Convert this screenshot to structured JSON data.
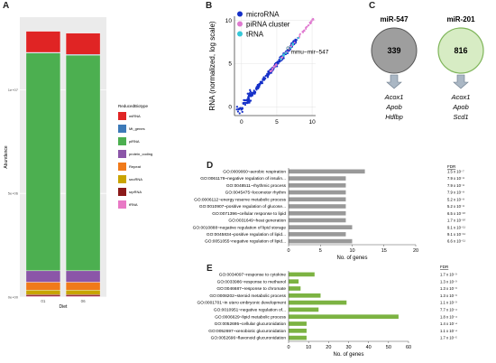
{
  "panels": [
    "A",
    "B",
    "C",
    "D",
    "E"
  ],
  "panelA": {
    "chart_data": {
      "type": "bar",
      "stacked": true,
      "xlabel": "Diet",
      "ylabel": "Abundance",
      "categories": [
        "01",
        "06"
      ],
      "y_ticks": [
        "0e+00",
        "5e+06",
        "1e+07"
      ],
      "ylim": [
        0,
        13500000
      ],
      "series": [
        {
          "name": "tRNA",
          "color": "#e879c5",
          "values": [
            40000,
            40000
          ]
        },
        {
          "name": "srpRNA",
          "color": "#8b1a1a",
          "values": [
            80000,
            80000
          ]
        },
        {
          "name": "snoRNA",
          "color": "#c9a400",
          "values": [
            220000,
            220000
          ]
        },
        {
          "name": "Repeat",
          "color": "#f07a1a",
          "values": [
            380000,
            380000
          ]
        },
        {
          "name": "protein_coding",
          "color": "#8b56a8",
          "values": [
            550000,
            550000
          ]
        },
        {
          "name": "piRNA",
          "color": "#4caf50",
          "values": [
            10500000,
            10400000
          ]
        },
        {
          "name": "Mt_genes",
          "color": "#3d7ab8",
          "values": [
            30000,
            30000
          ]
        },
        {
          "name": "miRNA",
          "color": "#e02424",
          "values": [
            1020000,
            1030000
          ]
        }
      ],
      "legend_title": "ReducedBiotype",
      "legend": [
        "miRNA",
        "Mt_genes",
        "piRNA",
        "protein_coding",
        "Repeat",
        "snoRNA",
        "srpRNA",
        "tRNA"
      ],
      "legend_colors": [
        "#e02424",
        "#3d7ab8",
        "#4caf50",
        "#8b56a8",
        "#f07a1a",
        "#c9a400",
        "#8b1a1a",
        "#e879c5"
      ],
      "legend_placement": "right"
    }
  },
  "panelB": {
    "chart_data": {
      "type": "scatter",
      "ylabel": "RNA (normalized, log scale)",
      "xlabel": "",
      "xlim": [
        -1,
        10.5
      ],
      "ylim": [
        -1,
        10.5
      ],
      "x_ticks": [
        0,
        5,
        10
      ],
      "y_ticks": [
        0,
        5,
        10
      ],
      "legend": [
        "microRNA",
        "piRNA cluster",
        "tRNA"
      ],
      "legend_colors": [
        "#1530c8",
        "#e07ad0",
        "#36c8d8"
      ],
      "legend_placement": "top-left",
      "annotation": {
        "text": "mmu−mir−547",
        "x": 6.6,
        "y": 6.8
      }
    }
  },
  "panelC": {
    "circles": [
      {
        "title": "miR-547",
        "count": "339",
        "genes": [
          "Acox1",
          "Apob",
          "Hdlbp"
        ],
        "fill": "#9e9e9e",
        "stroke": "#555555"
      },
      {
        "title": "miR-201",
        "count": "816",
        "genes": [
          "Acox1",
          "Apob",
          "Scd1"
        ],
        "fill": "#d7ecc4",
        "stroke": "#7fb55a"
      }
    ]
  },
  "panelD": {
    "chart_data": {
      "type": "bar",
      "orientation": "horizontal",
      "color": "#999999",
      "xlabel": "No. of genes",
      "x_ticks": [
        0,
        5,
        10,
        15,
        20
      ],
      "xlim": [
        0,
        20
      ],
      "fdr_header": "FDR",
      "categories": [
        "GO:0009060~aerobic respiration",
        "GO:0061179~negative regulation of insulin...",
        "GO:0048511~rhythmic process",
        "GO:0045475~locomotor rhythm",
        "GO:0006112~energy reserve metabolic process",
        "GO:0010907~positive regulation of glucose...",
        "GO:0071396~cellular response to lipid",
        "GO:0031649~heat generation",
        "GO:0010888~negative regulation of lipid storage",
        "GO:0045834~positive regulation of lipid...",
        "GO:0051055~negative regulation of lipid..."
      ],
      "values": [
        12,
        9,
        9,
        9,
        9,
        9,
        9,
        9,
        10,
        9,
        10
      ],
      "fdr": [
        "1.5 x 10⁻⁷",
        "7.9 x 10⁻⁸",
        "7.9 x 10⁻⁸",
        "7.9 x 10⁻⁸",
        "5.2 x 10⁻⁸",
        "5.2 x 10⁻⁸",
        "6.5 x 10⁻¹⁰",
        "1.7 x 10⁻¹⁰",
        "9.1 x 10⁻¹¹",
        "9.1 x 10⁻¹¹",
        "6.6 x 10⁻¹¹"
      ]
    }
  },
  "panelE": {
    "chart_data": {
      "type": "bar",
      "orientation": "horizontal",
      "color": "#7cb342",
      "xlabel": "No. of genes",
      "x_ticks": [
        0,
        10,
        20,
        30,
        40,
        50,
        60
      ],
      "xlim": [
        0,
        60
      ],
      "fdr_header": "FDR",
      "categories": [
        "GO:0034097~response to cytokine",
        "GO:0033986~response to methanol",
        "GO:0046687~response to chromate",
        "GO:0008202~steroid metabolic process",
        "GO:0001701~in utero embryonic development",
        "GO:0010951~negative regulation of...",
        "GO:0006629~lipid metabolic process",
        "GO:0052695~cellular glucuronidation",
        "GO:0052697~xenobiotic glucuronidation",
        "GO:0052696~flavonoid glucuronidation"
      ],
      "values": [
        13,
        5,
        6,
        16,
        29,
        15,
        55,
        9,
        9,
        9
      ],
      "fdr": [
        "1.7 x 10⁻³",
        "1.3 x 10⁻³",
        "1.3 x 10⁻³",
        "1.3 x 10⁻³",
        "1.1 x 10⁻³",
        "7.7 x 10⁻⁴",
        "1.8 x 10⁻⁴",
        "1.4 x 10⁻⁴",
        "1.1 x 10⁻⁴",
        "1.7 x 10⁻⁵"
      ]
    }
  }
}
